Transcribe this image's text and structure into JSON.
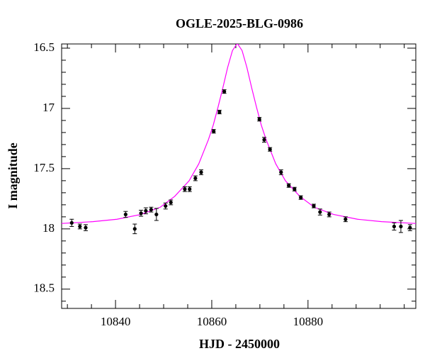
{
  "chart_data": {
    "type": "lightcurve",
    "title": "OGLE-2025-BLG-0986",
    "x_label": "HJD - 2450000",
    "y_label": "I magnitude",
    "xlim": [
      10828.8,
      10902.4
    ],
    "ylim": [
      18.66,
      16.465
    ],
    "y_inverted": true,
    "xticks": [
      10840,
      10860,
      10880
    ],
    "yticks": [
      16.5,
      17,
      17.5,
      18,
      18.5
    ],
    "xminorticks": [
      10830,
      10835,
      10845,
      10850,
      10855,
      10865,
      10870,
      10875,
      10885,
      10890,
      10895,
      10900
    ],
    "yminorticks": [
      16.6,
      16.7,
      16.8,
      16.9,
      17.1,
      17.2,
      17.3,
      17.4,
      17.6,
      17.7,
      17.8,
      17.9,
      18.1,
      18.2,
      18.3,
      18.4,
      18.6
    ],
    "series": [
      {
        "kind": "points",
        "color": "#000000",
        "x": [
          10830.9,
          10832.6,
          10833.8,
          10842.1,
          10844.0,
          10845.3,
          10846.3,
          10847.4,
          10848.5,
          10850.4,
          10851.5,
          10854.4,
          10855.4,
          10856.6,
          10857.8,
          10860.4,
          10861.6,
          10862.6,
          10869.9,
          10870.9,
          10872.1,
          10874.4,
          10876.0,
          10877.2,
          10878.5,
          10881.2,
          10882.5,
          10884.4,
          10887.8,
          10897.9,
          10899.3,
          10901.2
        ],
        "values": [
          17.95,
          17.98,
          17.99,
          17.88,
          18.0,
          17.87,
          17.85,
          17.84,
          17.88,
          17.81,
          17.78,
          17.67,
          17.67,
          17.58,
          17.53,
          17.19,
          17.03,
          16.86,
          17.09,
          17.26,
          17.34,
          17.53,
          17.64,
          17.67,
          17.74,
          17.81,
          17.86,
          17.88,
          17.92,
          17.98,
          17.98,
          17.99
        ],
        "errors": [
          0.03,
          0.02,
          0.025,
          0.025,
          0.04,
          0.025,
          0.025,
          0.02,
          0.05,
          0.025,
          0.02,
          0.02,
          0.02,
          0.02,
          0.02,
          0.015,
          0.015,
          0.015,
          0.015,
          0.02,
          0.015,
          0.02,
          0.015,
          0.015,
          0.015,
          0.015,
          0.025,
          0.02,
          0.02,
          0.03,
          0.05,
          0.025
        ]
      },
      {
        "kind": "line",
        "color": "#ff00ff",
        "x": [
          10828.8,
          10835.3,
          10840.3,
          10845.3,
          10849.3,
          10852.3,
          10855.3,
          10857.3,
          10859.3,
          10860.3,
          10861.3,
          10862.3,
          10863.3,
          10864.3,
          10865.3,
          10866.3,
          10867.3,
          10868.3,
          10869.3,
          10870.3,
          10871.3,
          10873.3,
          10875.3,
          10878.3,
          10881.3,
          10885.3,
          10890.3,
          10895.3,
          10902.4
        ],
        "values": [
          17.955,
          17.94,
          17.92,
          17.88,
          17.82,
          17.73,
          17.6,
          17.46,
          17.26,
          17.14,
          16.99,
          16.83,
          16.66,
          16.52,
          16.46,
          16.52,
          16.66,
          16.83,
          16.99,
          17.14,
          17.26,
          17.46,
          17.6,
          17.73,
          17.82,
          17.88,
          17.92,
          17.94,
          17.955
        ]
      }
    ]
  }
}
